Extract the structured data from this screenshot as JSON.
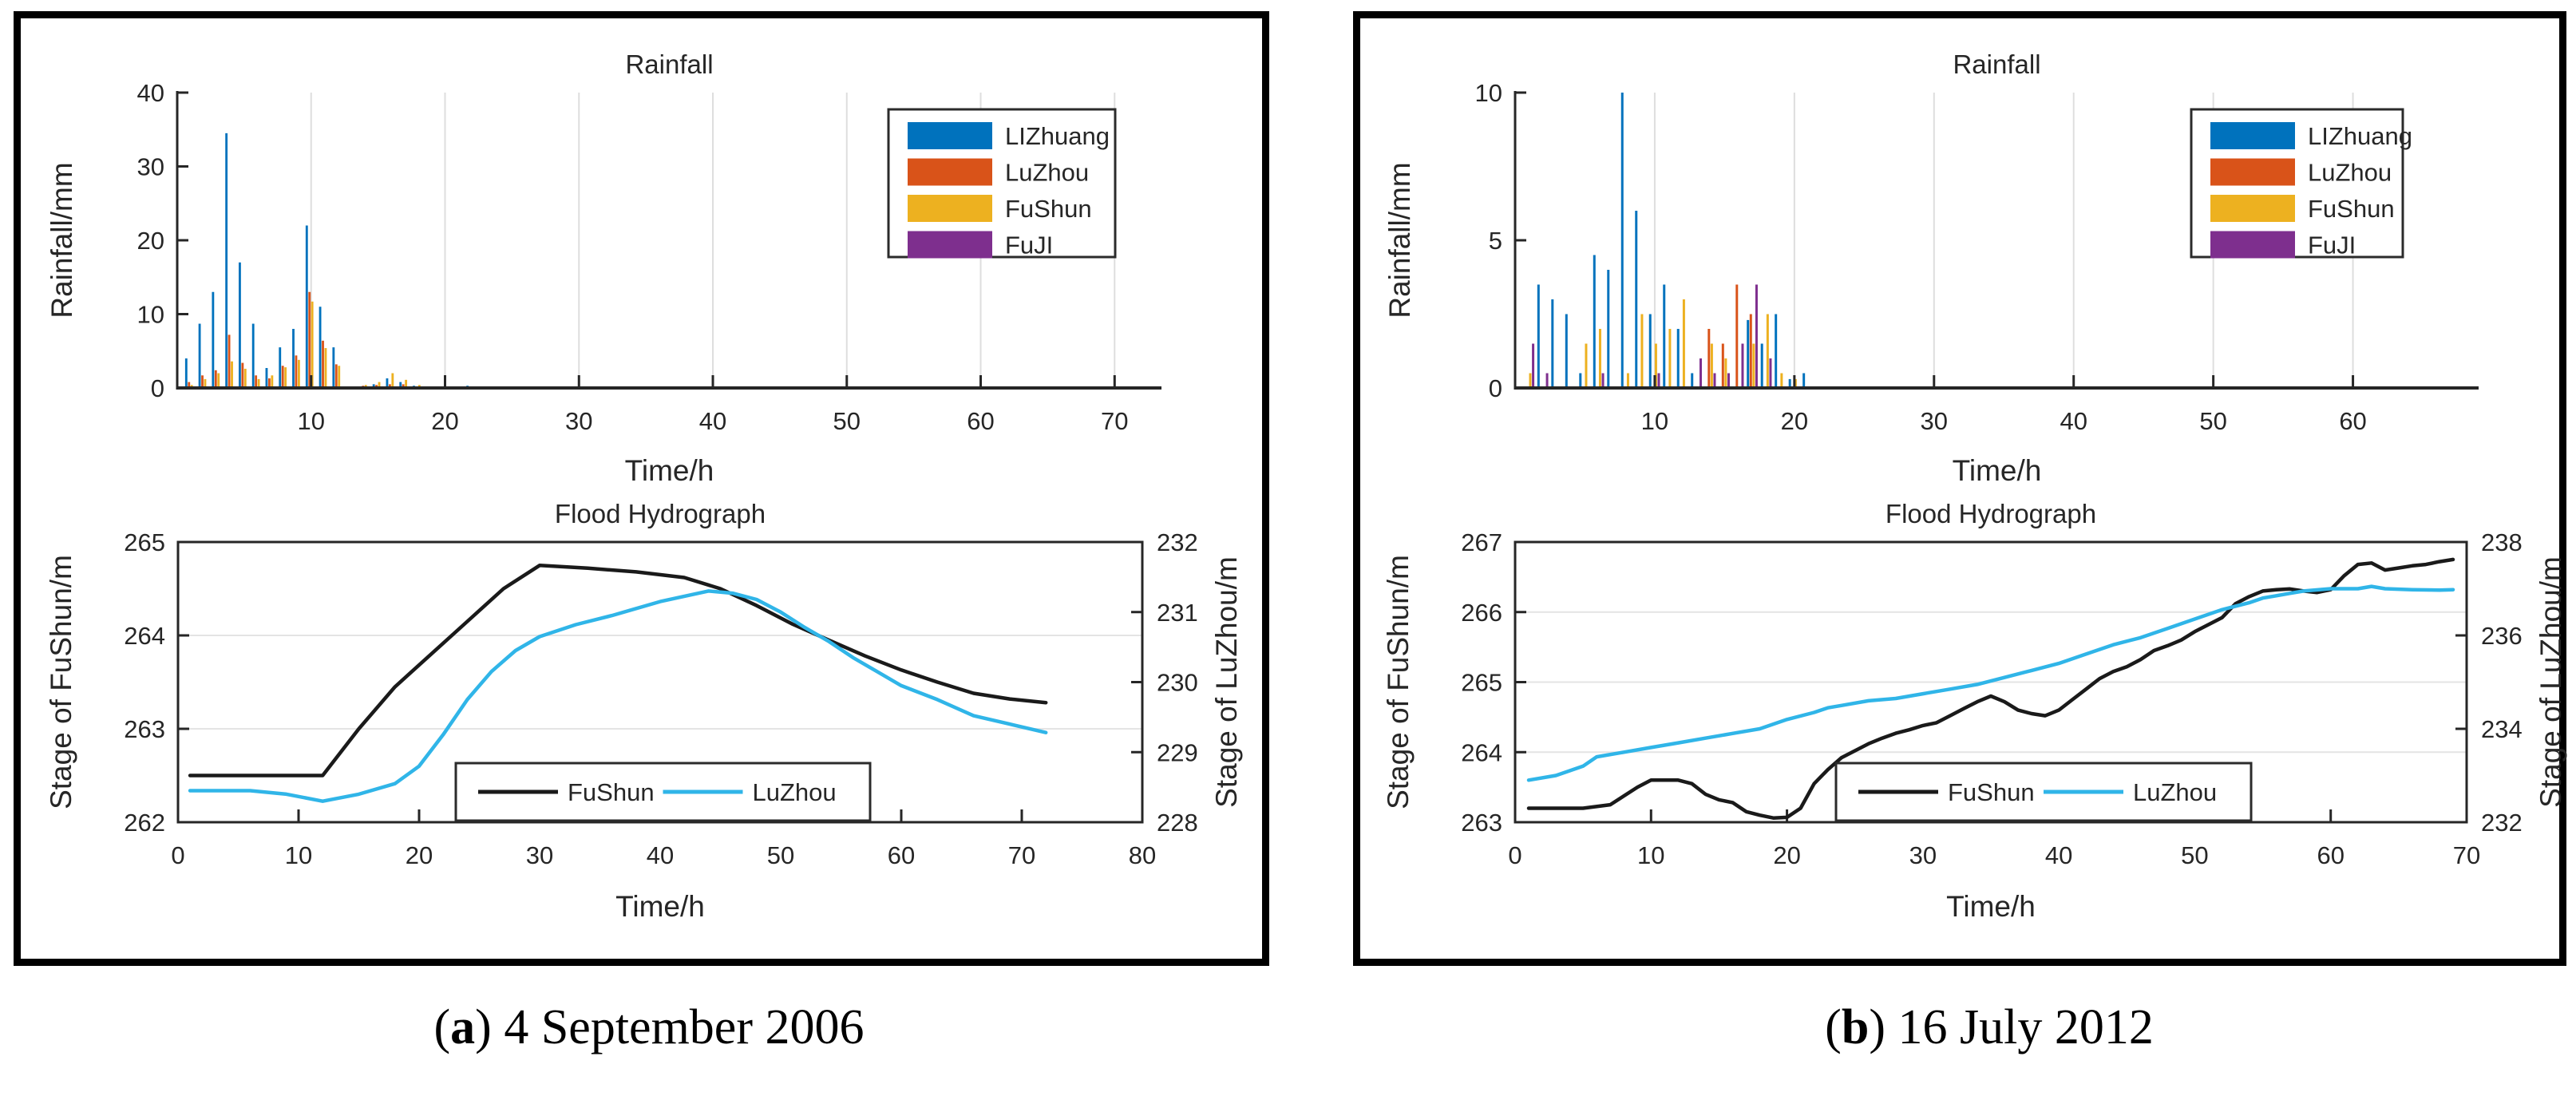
{
  "captions": {
    "a": {
      "open": "(",
      "letter": "a",
      "close": ")",
      "text": " 4 September 2006"
    },
    "b": {
      "open": "(",
      "letter": "b",
      "close": ")",
      "text": " 16 July 2012"
    }
  },
  "colors": {
    "lizhuang_blue": "#0072BD",
    "luzhou_orange": "#D95319",
    "fushun_yellow": "#EDB120",
    "fuji_purple": "#7E2F8E",
    "fushun_line_black": "#1a1a1a",
    "luzhou_line_cyan": "#30B5E8",
    "axis": "#262626",
    "gridline": "#dedede"
  },
  "chart_data": [
    {
      "id": "a_rain",
      "panel": "a",
      "type": "bar",
      "title": "Rainfall",
      "xlabel": "Time/h",
      "ylabel": "Rainfall/mm",
      "xlim": [
        0,
        73.5
      ],
      "ylim": [
        0,
        40
      ],
      "xticks": [
        10,
        20,
        30,
        40,
        50,
        60,
        70
      ],
      "yticks": [
        0,
        10,
        20,
        30,
        40
      ],
      "grid": "vertical",
      "legend_position": "top-right",
      "categories": [
        1,
        2,
        3,
        4,
        5,
        6,
        7,
        8,
        9,
        10,
        11,
        12,
        13,
        14,
        15,
        16,
        17,
        18,
        19,
        20,
        21,
        22
      ],
      "series": [
        {
          "name": "LIZhuang",
          "color": "#0072BD",
          "values": [
            4,
            8.7,
            13,
            34.5,
            17,
            8.7,
            2.7,
            5.5,
            8,
            22,
            11,
            5.5,
            0,
            0,
            0.5,
            1.3,
            0.8,
            0.3,
            0,
            0,
            0,
            0.3
          ]
        },
        {
          "name": "LuZhou",
          "color": "#D95319",
          "values": [
            0.8,
            1.7,
            2.4,
            7.2,
            3.4,
            1.7,
            1.3,
            3,
            4.4,
            13,
            6.4,
            3.2,
            0,
            0.3,
            0.4,
            0.5,
            0.5,
            0.2,
            0,
            0,
            0,
            0
          ]
        },
        {
          "name": "FuShun",
          "color": "#EDB120",
          "values": [
            0.4,
            1.2,
            2,
            3.6,
            2.6,
            1.2,
            1.7,
            2.8,
            3.8,
            11.7,
            5.4,
            3,
            0.2,
            0.4,
            0.8,
            2,
            1.1,
            0.4,
            0,
            0,
            0,
            0
          ]
        },
        {
          "name": "FuJI",
          "color": "#7E2F8E",
          "values": [
            0,
            0,
            0,
            0,
            0,
            0,
            0,
            0,
            0,
            0,
            0,
            0,
            0,
            0,
            0,
            0,
            0,
            0,
            0,
            0,
            0,
            0
          ]
        }
      ]
    },
    {
      "id": "a_hydro",
      "panel": "a",
      "type": "line",
      "title": "Flood Hydrograph",
      "xlabel": "Time/h",
      "ylabel_left": "Stage of FuShun/m",
      "ylabel_right": "Stage of LuZhou/m",
      "xlim": [
        0,
        80
      ],
      "xticks": [
        0,
        10,
        20,
        30,
        40,
        50,
        60,
        70,
        80
      ],
      "ylim_left": [
        262,
        265
      ],
      "yticks_left": [
        262,
        263,
        264,
        265
      ],
      "ylim_right": [
        228,
        232
      ],
      "yticks_right": [
        228,
        229,
        230,
        231,
        232
      ],
      "grid": "horizontal",
      "legend_position": "bottom-center",
      "series": [
        {
          "name": "FuShun",
          "axis": "left",
          "color": "#1a1a1a",
          "points": [
            [
              1,
              262.5
            ],
            [
              12,
              262.5
            ],
            [
              15,
              263.0
            ],
            [
              18,
              263.45
            ],
            [
              21,
              263.8
            ],
            [
              24,
              264.15
            ],
            [
              27,
              264.5
            ],
            [
              30,
              264.75
            ],
            [
              34,
              264.72
            ],
            [
              38,
              264.68
            ],
            [
              42,
              264.62
            ],
            [
              45,
              264.5
            ],
            [
              48,
              264.32
            ],
            [
              51,
              264.12
            ],
            [
              54,
              263.95
            ],
            [
              57,
              263.78
            ],
            [
              60,
              263.63
            ],
            [
              63,
              263.5
            ],
            [
              66,
              263.38
            ],
            [
              69,
              263.32
            ],
            [
              72,
              263.28
            ]
          ]
        },
        {
          "name": "LuZhou",
          "axis": "right",
          "color": "#30B5E8",
          "points": [
            [
              1,
              228.45
            ],
            [
              6,
              228.45
            ],
            [
              9,
              228.4
            ],
            [
              12,
              228.3
            ],
            [
              15,
              228.4
            ],
            [
              18,
              228.55
            ],
            [
              20,
              228.8
            ],
            [
              22,
              229.25
            ],
            [
              24,
              229.75
            ],
            [
              26,
              230.15
            ],
            [
              28,
              230.45
            ],
            [
              30,
              230.65
            ],
            [
              33,
              230.82
            ],
            [
              36,
              230.95
            ],
            [
              40,
              231.15
            ],
            [
              44,
              231.3
            ],
            [
              46,
              231.27
            ],
            [
              48,
              231.18
            ],
            [
              50,
              231.0
            ],
            [
              52,
              230.78
            ],
            [
              54,
              230.58
            ],
            [
              56,
              230.35
            ],
            [
              58,
              230.15
            ],
            [
              60,
              229.95
            ],
            [
              63,
              229.75
            ],
            [
              66,
              229.52
            ],
            [
              69,
              229.4
            ],
            [
              72,
              229.28
            ]
          ]
        }
      ]
    },
    {
      "id": "b_rain",
      "panel": "b",
      "type": "bar",
      "title": "Rainfall",
      "xlabel": "Time/h",
      "ylabel": "Rainfall/mm",
      "xlim": [
        0,
        69
      ],
      "ylim": [
        0,
        10
      ],
      "xticks": [
        10,
        20,
        30,
        40,
        50,
        60
      ],
      "yticks": [
        0,
        5,
        10
      ],
      "grid": "vertical",
      "legend_position": "top-right",
      "categories": [
        1,
        2,
        3,
        4,
        5,
        6,
        7,
        8,
        9,
        10,
        11,
        12,
        13,
        14,
        15,
        16,
        17,
        18,
        19,
        20,
        21
      ],
      "series": [
        {
          "name": "LIZhuang",
          "color": "#0072BD",
          "values": [
            0,
            3.5,
            3,
            2.5,
            0.5,
            4.5,
            4,
            10,
            6,
            2.5,
            3.5,
            2,
            0.5,
            0,
            0,
            0,
            2.3,
            1.5,
            2.5,
            0.3,
            0.5
          ]
        },
        {
          "name": "LuZhou",
          "color": "#D95319",
          "values": [
            0,
            0,
            0,
            0,
            0,
            0,
            0,
            0,
            0,
            0,
            0,
            0,
            0,
            2,
            1.5,
            3.5,
            2.5,
            0,
            0,
            0,
            0
          ]
        },
        {
          "name": "FuShun",
          "color": "#EDB120",
          "values": [
            0.5,
            0,
            0,
            0,
            1.5,
            2,
            0,
            0.5,
            2.5,
            1.5,
            2,
            3,
            0,
            1.5,
            1,
            0,
            1.5,
            2.5,
            0.5,
            0.3,
            0
          ]
        },
        {
          "name": "FuJI",
          "color": "#7E2F8E",
          "values": [
            1.5,
            0.5,
            0,
            0,
            0,
            0.5,
            0,
            0,
            0,
            0.5,
            0,
            0,
            1,
            0.5,
            0.5,
            1.5,
            3.5,
            1,
            0,
            0,
            0
          ]
        }
      ]
    },
    {
      "id": "b_hydro",
      "panel": "b",
      "type": "line",
      "title": "Flood Hydrograph",
      "xlabel": "Time/h",
      "ylabel_left": "Stage of FuShun/m",
      "ylabel_right": "Stage of LuZhou/m",
      "xlim": [
        0,
        70
      ],
      "xticks": [
        0,
        10,
        20,
        30,
        40,
        50,
        60,
        70
      ],
      "ylim_left": [
        263,
        267
      ],
      "yticks_left": [
        263,
        264,
        265,
        266,
        267
      ],
      "ylim_right": [
        232,
        238
      ],
      "yticks_right": [
        232,
        234,
        236,
        238
      ],
      "grid": "horizontal",
      "legend_position": "bottom-center",
      "series": [
        {
          "name": "FuShun",
          "axis": "left",
          "color": "#1a1a1a",
          "points": [
            [
              1,
              263.2
            ],
            [
              5,
              263.2
            ],
            [
              7,
              263.25
            ],
            [
              9,
              263.5
            ],
            [
              10,
              263.6
            ],
            [
              12,
              263.6
            ],
            [
              13,
              263.55
            ],
            [
              14,
              263.4
            ],
            [
              15,
              263.32
            ],
            [
              16,
              263.28
            ],
            [
              17,
              263.15
            ],
            [
              18,
              263.1
            ],
            [
              19,
              263.06
            ],
            [
              20,
              263.07
            ],
            [
              21,
              263.2
            ],
            [
              22,
              263.55
            ],
            [
              23,
              263.75
            ],
            [
              24,
              263.92
            ],
            [
              25,
              264.02
            ],
            [
              26,
              264.12
            ],
            [
              27,
              264.2
            ],
            [
              28,
              264.27
            ],
            [
              29,
              264.32
            ],
            [
              30,
              264.38
            ],
            [
              31,
              264.42
            ],
            [
              32,
              264.52
            ],
            [
              33,
              264.62
            ],
            [
              34,
              264.72
            ],
            [
              35,
              264.8
            ],
            [
              36,
              264.72
            ],
            [
              37,
              264.6
            ],
            [
              38,
              264.55
            ],
            [
              39,
              264.52
            ],
            [
              40,
              264.6
            ],
            [
              41,
              264.75
            ],
            [
              42,
              264.9
            ],
            [
              43,
              265.05
            ],
            [
              44,
              265.15
            ],
            [
              45,
              265.22
            ],
            [
              46,
              265.32
            ],
            [
              47,
              265.45
            ],
            [
              48,
              265.52
            ],
            [
              49,
              265.6
            ],
            [
              50,
              265.72
            ],
            [
              51,
              265.82
            ],
            [
              52,
              265.92
            ],
            [
              53,
              266.12
            ],
            [
              54,
              266.22
            ],
            [
              55,
              266.3
            ],
            [
              56,
              266.32
            ],
            [
              57,
              266.33
            ],
            [
              58,
              266.3
            ],
            [
              59,
              266.28
            ],
            [
              60,
              266.32
            ],
            [
              61,
              266.52
            ],
            [
              62,
              266.68
            ],
            [
              63,
              266.7
            ],
            [
              64,
              266.6
            ],
            [
              65,
              266.63
            ],
            [
              66,
              266.66
            ],
            [
              67,
              266.68
            ],
            [
              68,
              266.72
            ],
            [
              69,
              266.75
            ]
          ]
        },
        {
          "name": "LuZhou",
          "axis": "right",
          "color": "#30B5E8",
          "points": [
            [
              1,
              232.9
            ],
            [
              3,
              233.0
            ],
            [
              5,
              233.2
            ],
            [
              6,
              233.4
            ],
            [
              8,
              233.5
            ],
            [
              10,
              233.6
            ],
            [
              12,
              233.7
            ],
            [
              14,
              233.8
            ],
            [
              16,
              233.9
            ],
            [
              18,
              234.0
            ],
            [
              20,
              234.2
            ],
            [
              22,
              234.35
            ],
            [
              23,
              234.45
            ],
            [
              24,
              234.5
            ],
            [
              26,
              234.6
            ],
            [
              28,
              234.65
            ],
            [
              30,
              234.75
            ],
            [
              32,
              234.85
            ],
            [
              34,
              234.95
            ],
            [
              36,
              235.1
            ],
            [
              38,
              235.25
            ],
            [
              40,
              235.4
            ],
            [
              42,
              235.6
            ],
            [
              44,
              235.8
            ],
            [
              46,
              235.95
            ],
            [
              48,
              236.15
            ],
            [
              50,
              236.35
            ],
            [
              52,
              236.55
            ],
            [
              54,
              236.7
            ],
            [
              55,
              236.8
            ],
            [
              56,
              236.85
            ],
            [
              57,
              236.9
            ],
            [
              58,
              236.95
            ],
            [
              60,
              237.0
            ],
            [
              62,
              237.0
            ],
            [
              63,
              237.05
            ],
            [
              64,
              237.0
            ],
            [
              66,
              236.98
            ],
            [
              68,
              236.97
            ],
            [
              69,
              236.98
            ]
          ]
        }
      ]
    }
  ]
}
